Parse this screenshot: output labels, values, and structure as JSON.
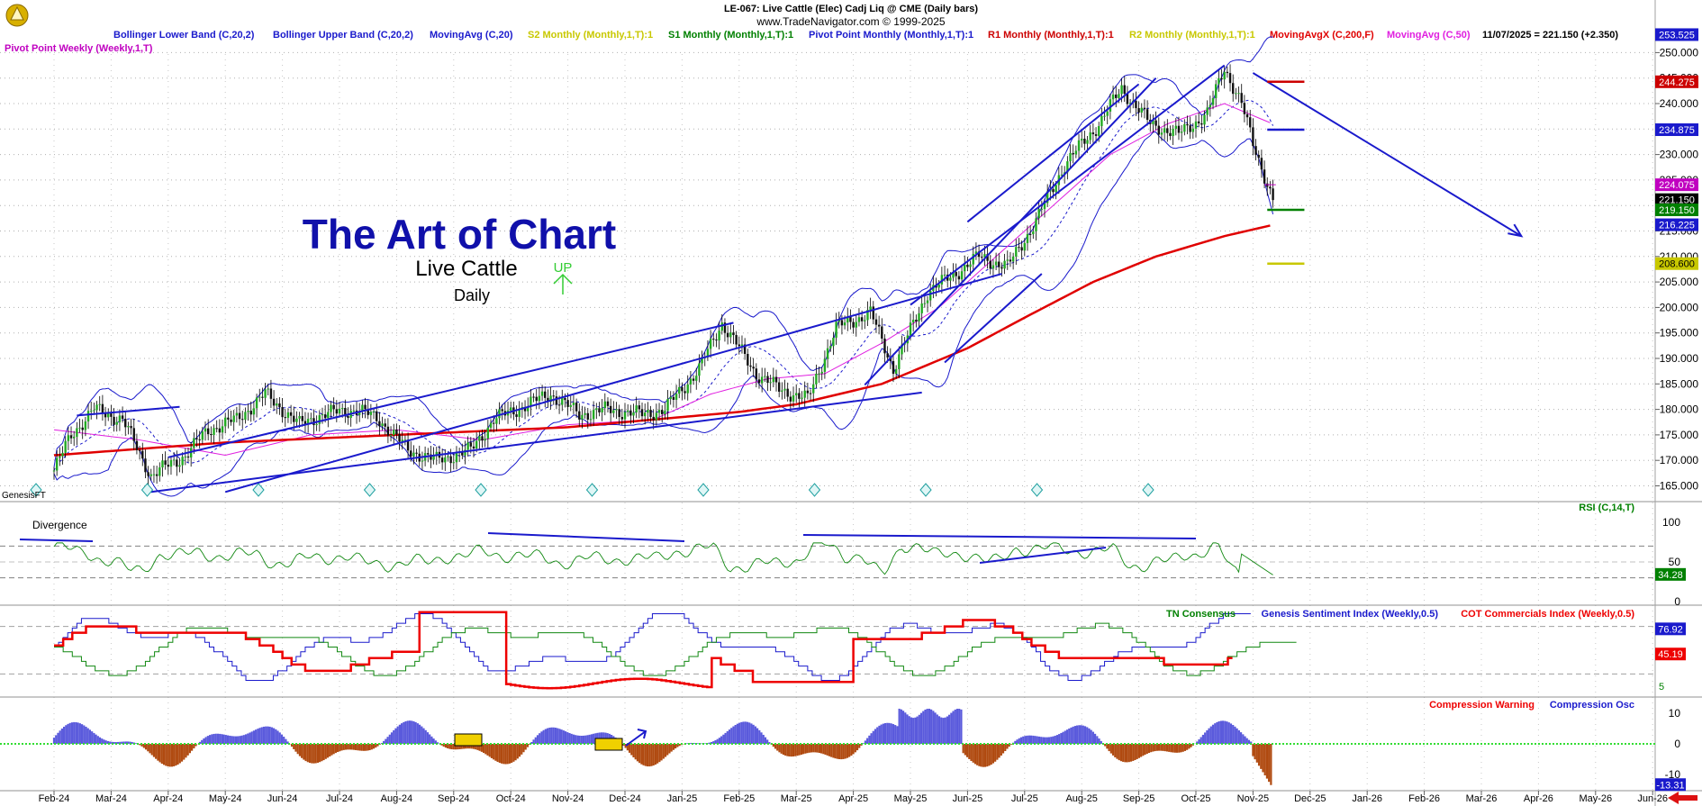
{
  "header": {
    "title": "LE-067:  Live Cattle (Elec) Cadj Liq @ CME  (Daily bars)",
    "copyright": "www.TradeNavigator.com © 1999-2025"
  },
  "legend": [
    {
      "label": "Bollinger Lower Band (C,20,2)",
      "color": "#1a1acc"
    },
    {
      "label": "Bollinger Upper Band (C,20,2)",
      "color": "#1a1acc"
    },
    {
      "label": "MovingAvg (C,20)",
      "color": "#1a1acc"
    },
    {
      "label": "S2 Monthly (Monthly,1,T):1",
      "color": "#c8c800"
    },
    {
      "label": "S1 Monthly (Monthly,1,T):1",
      "color": "#008000"
    },
    {
      "label": "Pivot Point Monthly (Monthly,1,T):1",
      "color": "#1a1acc"
    },
    {
      "label": "R1 Monthly (Monthly,1,T):1",
      "color": "#cc0000"
    },
    {
      "label": "R2 Monthly (Monthly,1,T):1",
      "color": "#c8c800"
    },
    {
      "label": "MovingAvgX (C,200,F)",
      "color": "#e00000"
    },
    {
      "label": "MovingAvg (C,50)",
      "color": "#e020e0"
    }
  ],
  "legend2": {
    "label": "Pivot Point Weekly (Weekly,1,T)",
    "color": "#c000c0"
  },
  "last_bar": "11/07/2025 = 221.150 (+2.350)",
  "watermark": "GenesisFT",
  "annotations": {
    "title": "The Art of Chart",
    "subtitle": "Live Cattle",
    "timeframe": "Daily",
    "up_label": "UP",
    "divergence": "Divergence"
  },
  "chart_data": [
    {
      "type": "candlestick",
      "panel": "price",
      "ylim": [
        164,
        255
      ],
      "y_ticks": [
        "165.000",
        "170.000",
        "175.000",
        "180.000",
        "185.000",
        "190.000",
        "195.000",
        "200.000",
        "205.000",
        "210.000",
        "215.000",
        "220.000",
        "225.000",
        "230.000",
        "235.000",
        "240.000",
        "245.000",
        "250.000"
      ],
      "x_labels": [
        "Feb-24",
        "Mar-24",
        "Apr-24",
        "May-24",
        "Jun-24",
        "Jul-24",
        "Aug-24",
        "Sep-24",
        "Oct-24",
        "Nov-24",
        "Dec-24",
        "Jan-25",
        "Feb-25",
        "Mar-25",
        "Apr-25",
        "May-25",
        "Jun-25",
        "Jul-25",
        "Aug-25",
        "Sep-25",
        "Oct-25",
        "Nov-25",
        "Dec-25",
        "Jan-26",
        "Feb-26",
        "Mar-26",
        "Apr-26",
        "May-26",
        "Jun-26"
      ],
      "close_path": [
        [
          0,
          168
        ],
        [
          0.3,
          175
        ],
        [
          0.7,
          180
        ],
        [
          1.2,
          178
        ],
        [
          1.7,
          167
        ],
        [
          2.3,
          171
        ],
        [
          2.7,
          176
        ],
        [
          3.2,
          178
        ],
        [
          3.7,
          183
        ],
        [
          4.3,
          177
        ],
        [
          4.7,
          179
        ],
        [
          5.3,
          180
        ],
        [
          5.7,
          178
        ],
        [
          6.2,
          172
        ],
        [
          6.7,
          170
        ],
        [
          7.3,
          172
        ],
        [
          7.7,
          178
        ],
        [
          8.3,
          181
        ],
        [
          8.7,
          183
        ],
        [
          9.2,
          179
        ],
        [
          9.7,
          180
        ],
        [
          10.3,
          179
        ],
        [
          10.7,
          180
        ],
        [
          11.3,
          188
        ],
        [
          11.7,
          197
        ],
        [
          12.3,
          187
        ],
        [
          12.7,
          184
        ],
        [
          13.2,
          182
        ],
        [
          13.7,
          196
        ],
        [
          14.3,
          199
        ],
        [
          14.7,
          188
        ],
        [
          15.3,
          203
        ],
        [
          15.7,
          206
        ],
        [
          16.2,
          210
        ],
        [
          16.7,
          208
        ],
        [
          17.2,
          217
        ],
        [
          17.7,
          228
        ],
        [
          18.3,
          236
        ],
        [
          18.7,
          243
        ],
        [
          19.2,
          236
        ],
        [
          19.7,
          234
        ],
        [
          20.2,
          238
        ],
        [
          20.5,
          247
        ],
        [
          20.8,
          240
        ],
        [
          21.0,
          232
        ],
        [
          21.2,
          226
        ],
        [
          21.35,
          221.15
        ]
      ],
      "monthly_levels": [
        {
          "name": "R1 Monthly",
          "value": 244.275,
          "label": "244.275",
          "color": "#cc0000"
        },
        {
          "name": "Pivot Point Monthly",
          "value": 234.875,
          "label": "234.875",
          "color": "#1a1acc"
        },
        {
          "name": "S1 Monthly",
          "value": 219.15,
          "label": "219.150",
          "color": "#008000"
        },
        {
          "name": "S2 Monthly",
          "value": 208.6,
          "label": "208.600",
          "color": "#c8c800"
        }
      ],
      "tags": [
        {
          "value": 253.525,
          "label": "253.525",
          "bg": "#1a1acc",
          "fg": "#ffffff"
        },
        {
          "value": 244.275,
          "label": "244.275",
          "bg": "#cc0000",
          "fg": "#ffffff"
        },
        {
          "value": 234.875,
          "label": "234.875",
          "bg": "#1a1acc",
          "fg": "#ffffff"
        },
        {
          "value": 224.075,
          "label": "224.075",
          "bg": "#c000c0",
          "fg": "#ffffff"
        },
        {
          "value": 221.15,
          "label": "221.150",
          "bg": "#000000",
          "fg": "#ffffff"
        },
        {
          "value": 219.15,
          "label": "219.150",
          "bg": "#008000",
          "fg": "#ffffff"
        },
        {
          "value": 216.225,
          "label": "216.225",
          "bg": "#1a1acc",
          "fg": "#ffffff"
        },
        {
          "value": 208.6,
          "label": "208.600",
          "bg": "#c8c800",
          "fg": "#000000"
        }
      ],
      "ma200_path": [
        [
          0,
          171
        ],
        [
          3,
          173.5
        ],
        [
          6,
          175
        ],
        [
          9,
          176.5
        ],
        [
          12,
          179.5
        ],
        [
          13,
          181
        ],
        [
          14.5,
          185
        ],
        [
          16,
          192
        ],
        [
          17,
          198
        ],
        [
          18.2,
          205
        ],
        [
          19.3,
          210
        ],
        [
          20.5,
          214
        ],
        [
          21.35,
          216.2
        ]
      ],
      "ma50_path": [
        [
          0,
          176
        ],
        [
          1.5,
          174
        ],
        [
          3,
          171
        ],
        [
          4.5,
          175
        ],
        [
          6,
          176
        ],
        [
          7.5,
          174
        ],
        [
          9,
          177
        ],
        [
          10.5,
          178
        ],
        [
          11.5,
          183
        ],
        [
          12.5,
          186
        ],
        [
          13.5,
          187
        ],
        [
          14.5,
          193
        ],
        [
          15.5,
          200
        ],
        [
          16.5,
          210
        ],
        [
          17.5,
          220
        ],
        [
          18.5,
          230
        ],
        [
          19.5,
          236
        ],
        [
          20.5,
          240
        ],
        [
          21.35,
          236
        ]
      ],
      "trendlines": [
        {
          "from": [
            0.4,
            178.8
          ],
          "to": [
            2.2,
            180.5
          ]
        },
        {
          "from": [
            1.7,
            163.8
          ],
          "to": [
            15.2,
            183.3
          ]
        },
        {
          "from": [
            3.0,
            163.8
          ],
          "to": [
            16.6,
            206.6
          ]
        },
        {
          "from": [
            2.0,
            170.6
          ],
          "to": [
            11.9,
            197.0
          ]
        },
        {
          "from": [
            15.0,
            200.5
          ],
          "to": [
            20.5,
            247.5
          ]
        },
        {
          "from": [
            16.0,
            216.8
          ],
          "to": [
            19.0,
            243.8
          ]
        },
        {
          "from": [
            15.6,
            189.2
          ],
          "to": [
            17.3,
            206.6
          ]
        },
        {
          "from": [
            14.2,
            184.8
          ],
          "to": [
            19.3,
            245.0
          ]
        },
        {
          "from": [
            21.0,
            246.0
          ],
          "to": [
            25.7,
            214.0
          ]
        }
      ]
    },
    {
      "type": "line",
      "panel": "rsi",
      "indicator": "RSI (C,14,T)",
      "ylim": [
        0,
        100
      ],
      "y_ticks": [
        "100",
        "50",
        "0"
      ],
      "last_value": "34.28"
    },
    {
      "type": "line",
      "panel": "sentiment",
      "series": [
        {
          "name": "TN Consensus",
          "color": "#008000"
        },
        {
          "name": "Genesis Sentiment Index (Weekly,0.5)",
          "color": "#1a1acc",
          "last": "76.92"
        },
        {
          "name": "COT Commercials Index (Weekly,0.5)",
          "color": "#ee0000",
          "last": "45.19"
        }
      ],
      "green_last": "5"
    },
    {
      "type": "area",
      "panel": "compression",
      "series": [
        {
          "name": "Compression Warning",
          "color": "#ee0000"
        },
        {
          "name": "Compression Osc",
          "color": "#1a1acc"
        }
      ],
      "y_ticks": [
        "10",
        "0",
        "-10"
      ],
      "last_value": "-13.31"
    }
  ]
}
